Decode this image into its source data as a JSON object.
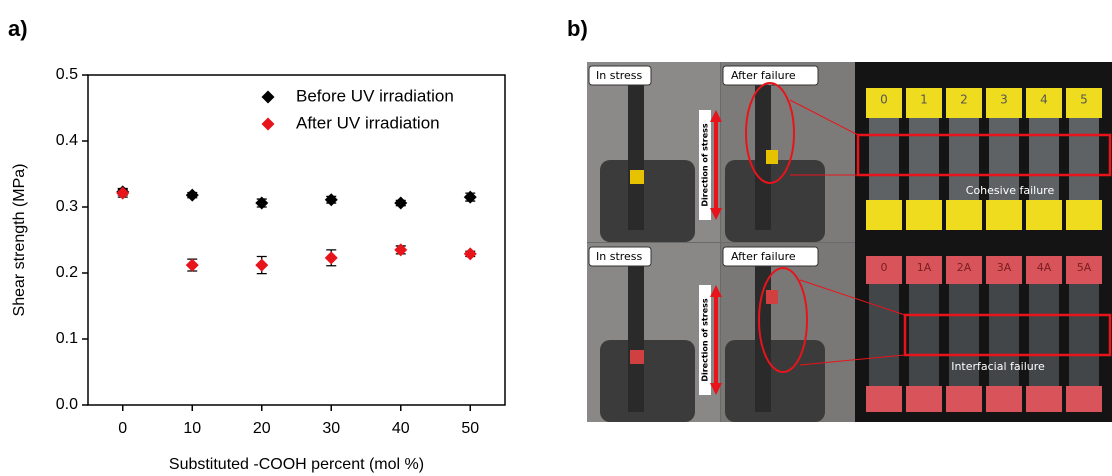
{
  "panels": {
    "a": "a)",
    "b": "b)"
  },
  "chart_data": {
    "type": "scatter",
    "x_label": "Substituted -COOH percent (mol %)",
    "y_label": "Shear strength (MPa)",
    "x": [
      0,
      10,
      20,
      30,
      40,
      50
    ],
    "series": [
      {
        "name": "Before UV irradiation",
        "color": "#000000",
        "values": [
          0.323,
          0.318,
          0.306,
          0.311,
          0.306,
          0.315
        ],
        "errors": [
          0.005,
          0.004,
          0.006,
          0.005,
          0.004,
          0.006
        ]
      },
      {
        "name": "After UV irradiation",
        "color": "#e8141b",
        "values": [
          0.321,
          0.212,
          0.212,
          0.223,
          0.235,
          0.229
        ],
        "errors": [
          0.006,
          0.009,
          0.013,
          0.012,
          0.006,
          0.004
        ]
      }
    ],
    "xlim": [
      -5,
      55
    ],
    "xticks": [
      0,
      10,
      20,
      30,
      40,
      50
    ],
    "ylim": [
      0,
      0.5
    ],
    "yticks": [
      {
        "value": 0,
        "label": "0.0"
      },
      0.1,
      0.2,
      0.3,
      0.4,
      0.5
    ],
    "legend": "upper right"
  },
  "photo": {
    "top_left": "In stress",
    "top_right": "After failure",
    "bottom_left": "In stress",
    "bottom_right": "After failure",
    "direction_top": "Direction of stress",
    "direction_bottom": "Direction of stress",
    "cohesive": "Cohesive failure",
    "interfacial": "Interfacial failure",
    "top_samples": [
      "0",
      "1",
      "2",
      "3",
      "4",
      "5"
    ],
    "bottom_samples": [
      "0",
      "1A",
      "2A",
      "3A",
      "4A",
      "5A"
    ]
  }
}
